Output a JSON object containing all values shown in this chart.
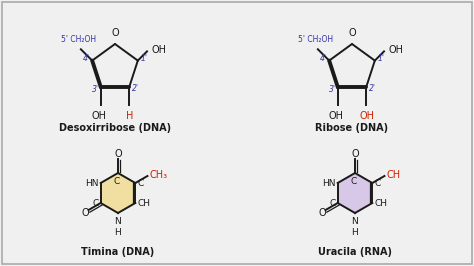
{
  "bg_color": "#f0f0f0",
  "border_color": "#aaaaaa",
  "text_color": "#1a1a1a",
  "blue_color": "#3333aa",
  "red_color": "#cc2200",
  "title1": "Desoxirribose (DNA)",
  "title2": "Ribose (DNA)",
  "title3": "Timina (DNA)",
  "title4": "Uracila (RNA)",
  "ring_fill_timina": "#f0dfa0",
  "ring_fill_uracila": "#d8c8e8",
  "fig_width": 4.74,
  "fig_height": 2.66,
  "dpi": 100
}
